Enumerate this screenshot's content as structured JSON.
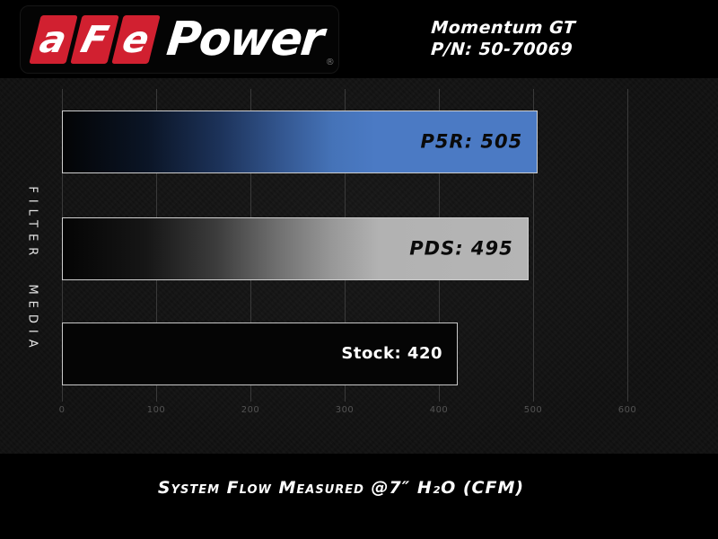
{
  "header": {
    "logo": {
      "boxed_letters": [
        "a",
        "F",
        "e"
      ],
      "wordmark": "Power",
      "registered_mark": "®",
      "brand_red": "#d12030"
    },
    "product_line1": "Momentum GT",
    "product_line2": "P/N: 50-70069"
  },
  "chart_data": {
    "type": "bar",
    "orientation": "horizontal",
    "title": "",
    "xlabel": "System Flow Measured @7″ H₂O (CFM)",
    "ylabel": "FILTER MEDIA",
    "xlim": [
      0,
      660
    ],
    "xticks": [
      0,
      100,
      200,
      300,
      400,
      500,
      600
    ],
    "grid": "vertical",
    "legend": "none",
    "categories": [
      "P5R",
      "PDS",
      "Stock"
    ],
    "values": [
      505,
      495,
      420
    ],
    "bars": [
      {
        "category": "P5R",
        "value": 505,
        "label": "P5R: 505",
        "style": "blue-gradient",
        "label_color": "#000000"
      },
      {
        "category": "PDS",
        "value": 495,
        "label": "PDS: 495",
        "style": "gray-gradient",
        "label_color": "#000000"
      },
      {
        "category": "Stock",
        "value": 420,
        "label": "Stock: 420",
        "style": "black-outline",
        "label_color": "#ffffff"
      }
    ],
    "colors": {
      "blue_bar_end": "#4b7ac4",
      "gray_bar_end": "#b5b5b5",
      "stock_bar_fill": "#050505",
      "bar_border": "#cfcfcf",
      "gridline": "#3a3a3a",
      "tick_label": "#535353",
      "background": "#101010"
    }
  }
}
